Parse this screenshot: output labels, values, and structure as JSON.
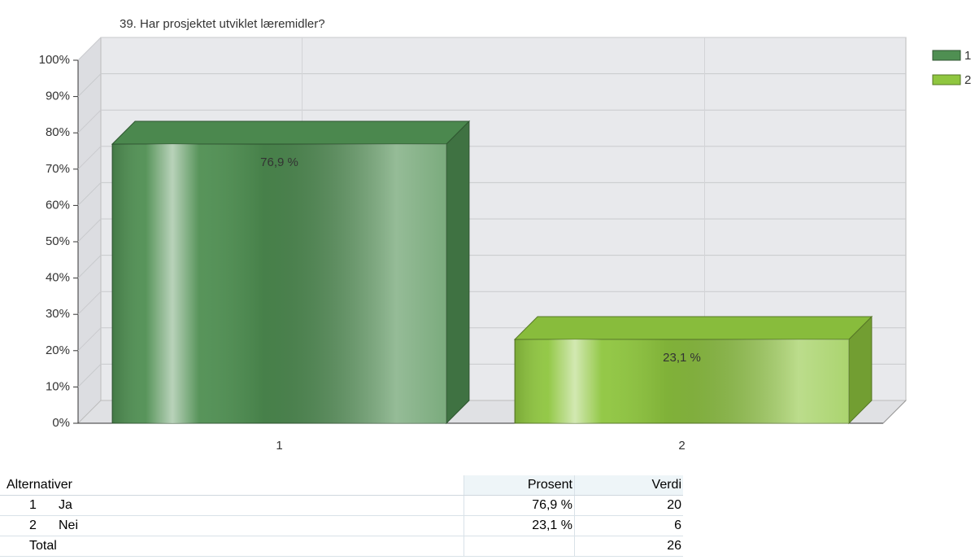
{
  "chart_data": {
    "type": "bar",
    "title": "39. Har prosjektet utviklet læremidler?",
    "categories": [
      "1",
      "2"
    ],
    "values": [
      76.9,
      23.1
    ],
    "value_labels": [
      "76,9 %",
      "23,1 %"
    ],
    "colors": [
      "#4f8f52",
      "#8fc63f"
    ],
    "ylim": [
      0,
      100
    ],
    "yticks": [
      {
        "value": 0,
        "label": "0%"
      },
      {
        "value": 10,
        "label": "10%"
      },
      {
        "value": 20,
        "label": "20%"
      },
      {
        "value": 30,
        "label": "30%"
      },
      {
        "value": 40,
        "label": "40%"
      },
      {
        "value": 50,
        "label": "50%"
      },
      {
        "value": 60,
        "label": "60%"
      },
      {
        "value": 70,
        "label": "70%"
      },
      {
        "value": 80,
        "label": "80%"
      },
      {
        "value": 90,
        "label": "90%"
      },
      {
        "value": 100,
        "label": "100%"
      }
    ],
    "grid": true,
    "legend": "top-right"
  },
  "table": {
    "headers": [
      "Alternativer",
      "Prosent",
      "Verdi"
    ],
    "rows": [
      {
        "num": "1",
        "name": "Ja",
        "prosent": "76,9 %",
        "verdi": 20
      },
      {
        "num": "2",
        "name": "Nei",
        "prosent": "23,1 %",
        "verdi": 6
      },
      {
        "name": "Total",
        "verdi": 26
      }
    ]
  }
}
